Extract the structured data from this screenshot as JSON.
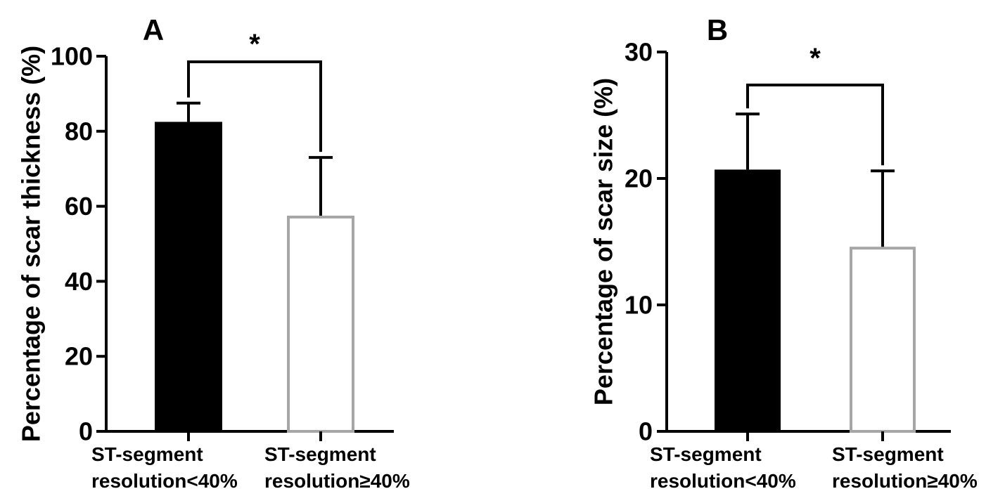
{
  "colors": {
    "black_bar": "#000000",
    "grey_bar_edge": "#a6a6a6",
    "axis": "#000000"
  },
  "chart_data": [
    {
      "panel": "A",
      "type": "bar",
      "categories": [
        [
          "ST-segment",
          "resolution<40%"
        ],
        [
          "ST-segment",
          "resolution≥40%"
        ]
      ],
      "values": [
        82.5,
        57.5
      ],
      "errors": [
        5,
        15.5
      ],
      "xlabel": "",
      "ylabel": "Percentage of scar thickness (%)",
      "ylim": [
        0,
        100
      ],
      "yticks": [
        0,
        20,
        40,
        60,
        80,
        100
      ],
      "significance": "*",
      "grid": false
    },
    {
      "panel": "B",
      "type": "bar",
      "categories": [
        [
          "ST-segment",
          "resolution<40%"
        ],
        [
          "ST-segment",
          "resolution≥40%"
        ]
      ],
      "values": [
        20.7,
        14.6
      ],
      "errors": [
        4.4,
        6
      ],
      "xlabel": "",
      "ylabel": "Percentage of scar size (%)",
      "ylim": [
        0,
        30
      ],
      "yticks": [
        0,
        10,
        20,
        30
      ],
      "significance": "*",
      "grid": false
    }
  ]
}
